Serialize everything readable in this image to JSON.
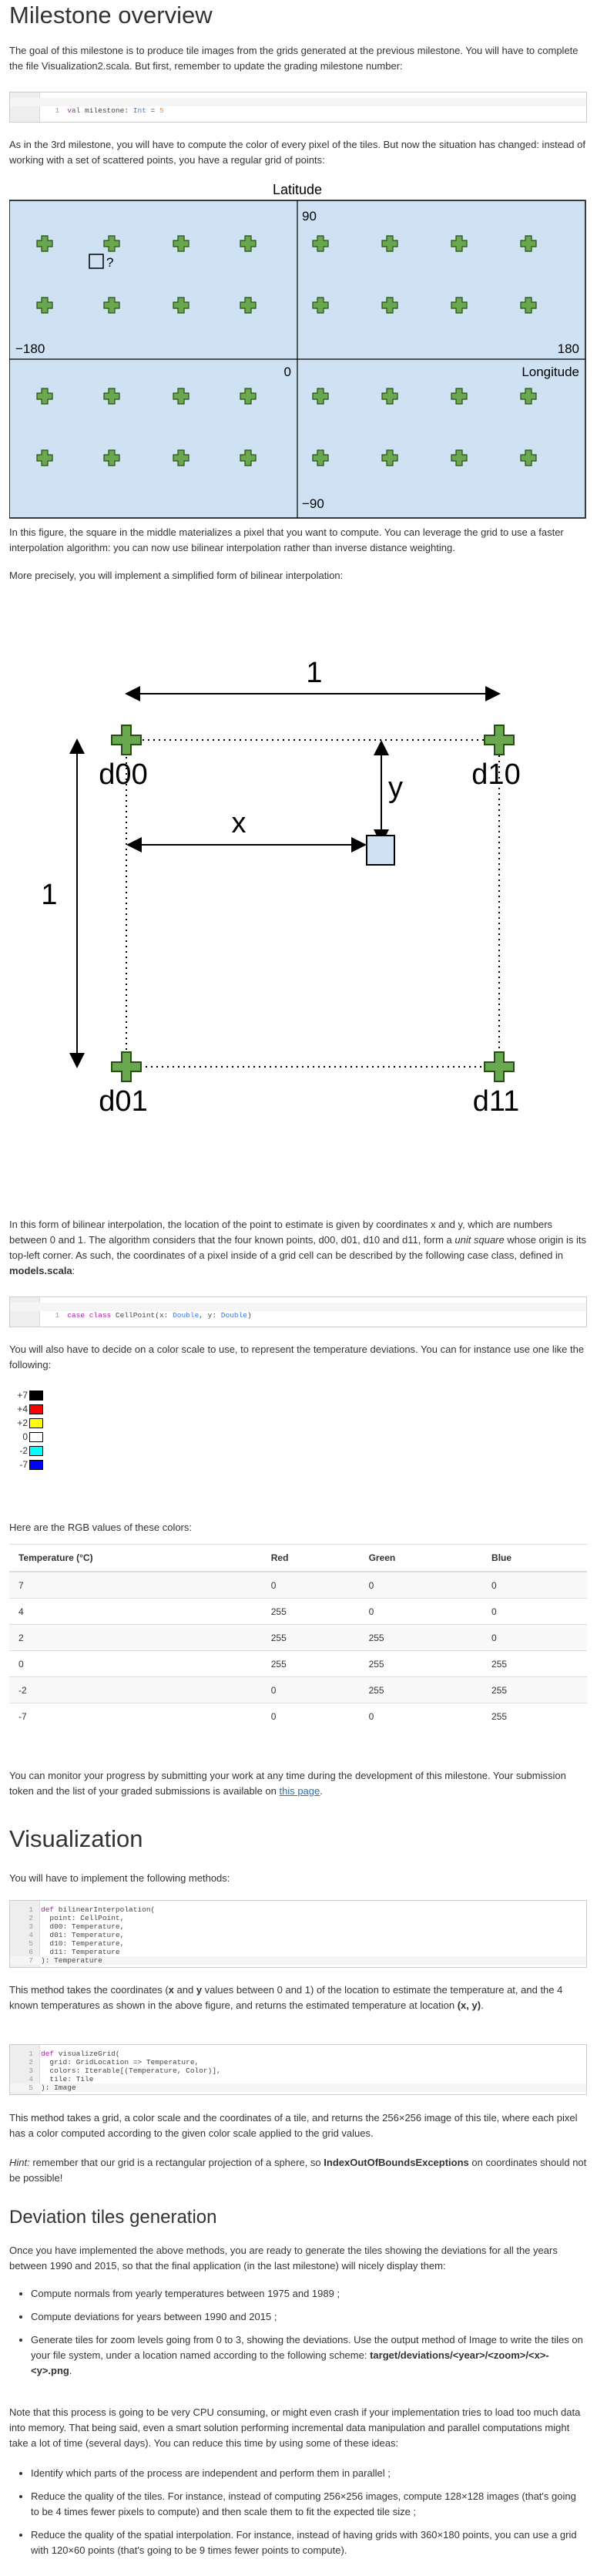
{
  "title": "Milestone overview",
  "intro": "The goal of this milestone is to produce tile images from the grids generated at the previous milestone. You will have to complete the file Visualization2.scala. But first, remember to update the grading milestone number:",
  "code_milestone": {
    "ln": "1",
    "kw": "val",
    "name": " milestone",
    "colon": ": ",
    "type": "Int",
    "eq": " = ",
    "value": "5"
  },
  "para_grid": "As in the 3rd milestone, you will have to compute the color of every pixel of the tiles. But now the situation has changed: instead of working with a set of scattered points, you have a regular grid of points:",
  "grid_figure": {
    "top_label": "Latitude",
    "lat_90": "90",
    "lon_180_neg": "−180",
    "lon_180": "180",
    "zero": "0",
    "longitude": "Longitude",
    "lat_90_neg": "−90",
    "question": "?",
    "bg_color": "#cfe2f3",
    "cross_color": "#6aa84f"
  },
  "para_square": "In this figure, the square in the middle materializes a pixel that you want to compute. You can leverage the grid to use a faster interpolation algorithm: you can now use bilinear interpolation rather than inverse distance weighting.",
  "para_precisely": "More precisely, you will implement a simplified form of bilinear interpolation:",
  "bilinear_figure": {
    "one_top": "1",
    "one_left": "1",
    "x": "x",
    "y": "y",
    "d00": "d00",
    "d10": "d10",
    "d01": "d01",
    "d11": "d11"
  },
  "para_bilinear_1": "In this form of bilinear interpolation, the location of the point to estimate is given by coordinates x and y, which are numbers between 0 and 1. The algorithm considers that the four known points, d00, d01, d10 and d11, form a ",
  "para_bilinear_unit": "unit square",
  "para_bilinear_2": " whose origin is its top-left corner. As such, the coordinates of a pixel inside of a grid cell can be described by the following case class, defined in ",
  "para_bilinear_file": "models.scala",
  "para_bilinear_3": ":",
  "code_cellpoint": {
    "ln": "1",
    "kw": "case class",
    "name": " CellPoint(x",
    "c1": ": ",
    "t1": "Double",
    "mid": ", y",
    "c2": ": ",
    "t2": "Double",
    "end": ")"
  },
  "para_scale": "You will also have to decide on a color scale to use, to represent the temperature deviations. You can for instance use one like the following:",
  "legend": [
    {
      "label": "+7",
      "color": "#000000"
    },
    {
      "label": "+4",
      "color": "#ff0000"
    },
    {
      "label": "+2",
      "color": "#ffff00"
    },
    {
      "label": "0",
      "color": "#ffffff"
    },
    {
      "label": "-2",
      "color": "#00ffff"
    },
    {
      "label": "-7",
      "color": "#0000ff"
    }
  ],
  "para_rgb": "Here are the RGB values of these colors:",
  "rgb_table": {
    "headers": [
      "Temperature (°C)",
      "Red",
      "Green",
      "Blue"
    ],
    "rows": [
      [
        "7",
        "0",
        "0",
        "0"
      ],
      [
        "4",
        "255",
        "0",
        "0"
      ],
      [
        "2",
        "255",
        "255",
        "0"
      ],
      [
        "0",
        "255",
        "255",
        "255"
      ],
      [
        "-2",
        "0",
        "255",
        "255"
      ],
      [
        "-7",
        "0",
        "0",
        "255"
      ]
    ]
  },
  "para_progress_1": "You can monitor your progress by submitting your work at any time during the development of this milestone. Your submission token and the list of your graded submissions is available on ",
  "para_progress_link": "this page",
  "para_progress_2": ".",
  "visualization_title": "Visualization",
  "para_implement": "You will have to implement the following methods:",
  "code_bilinear": [
    {
      "ln": "1",
      "parts": [
        [
          "kw",
          "def"
        ],
        [
          "txt",
          " bilinearInterpolation("
        ]
      ]
    },
    {
      "ln": "2",
      "parts": [
        [
          "txt",
          "  point: CellPoint,"
        ]
      ]
    },
    {
      "ln": "3",
      "parts": [
        [
          "txt",
          "  d00: Temperature,"
        ]
      ]
    },
    {
      "ln": "4",
      "parts": [
        [
          "txt",
          "  d01: Temperature,"
        ]
      ]
    },
    {
      "ln": "5",
      "parts": [
        [
          "txt",
          "  d10: Temperature,"
        ]
      ]
    },
    {
      "ln": "6",
      "parts": [
        [
          "txt",
          "  d11: Temperature"
        ]
      ]
    },
    {
      "ln": "7",
      "parts": [
        [
          "txt",
          "): Temperature"
        ]
      ]
    }
  ],
  "para_method_1": "This method takes the coordinates (",
  "para_method_x": "x",
  "para_method_and": " and ",
  "para_method_y": "y",
  "para_method_2": " values between 0 and 1) of the location to estimate the temperature at, and the 4 known temperatures as shown in the above figure, and returns the estimated temperature at location ",
  "para_method_xy": "(x, y)",
  "para_method_3": ".",
  "code_visualize": [
    {
      "ln": "1",
      "parts": [
        [
          "kw",
          "def"
        ],
        [
          "txt",
          " visualizeGrid("
        ]
      ]
    },
    {
      "ln": "2",
      "parts": [
        [
          "txt",
          "  grid: GridLocation => Temperature,"
        ]
      ]
    },
    {
      "ln": "3",
      "parts": [
        [
          "txt",
          "  colors: Iterable[(Temperature, Color)],"
        ]
      ]
    },
    {
      "ln": "4",
      "parts": [
        [
          "txt",
          "  tile: Tile"
        ]
      ]
    },
    {
      "ln": "5",
      "parts": [
        [
          "txt",
          "): Image"
        ]
      ]
    }
  ],
  "para_grid_method": "This method takes a grid, a color scale and the coordinates of a tile, and returns the 256×256 image of this tile, where each pixel has a color computed according to the given color scale applied to the grid values.",
  "hint_label": "Hint:",
  "hint_1": " remember that our grid is a rectangular projection of a sphere, so ",
  "hint_exc": "IndexOutOfBoundsExceptions",
  "hint_2": " on coordinates should not be possible!",
  "deviation_title": "Deviation tiles generation",
  "para_deviation": "Once you have implemented the above methods, you are ready to generate the tiles showing the deviations for all the years between 1990 and 2015, so that the final application (in the last milestone) will nicely display them:",
  "deviation_list": [
    {
      "text": "Compute normals from yearly temperatures between 1975 and 1989 ;"
    },
    {
      "text": "Compute deviations for years between 1990 and 2015 ;"
    },
    {
      "text": "Generate tiles for zoom levels going from 0 to 3, showing the deviations. Use the output method of Image to write the tiles on your file system, under a location named according to the following scheme: ",
      "bold": "target/deviations/<year>/<zoom>/<x>-<y>.png",
      "tail": "."
    }
  ],
  "para_cpu": "Note that this process is going to be very CPU consuming, or might even crash if your implementation tries to load too much data into memory. That being said, even a smart solution performing incremental data manipulation and parallel computations might take a lot of time (several days). You can reduce this time by using some of these ideas:",
  "ideas_list": [
    "Identify which parts of the process are independent and perform them in parallel ;",
    "Reduce the quality of the tiles. For instance, instead of computing 256×256 images, compute 128×128 images (that's going to be 4 times fewer pixels to compute) and then scale them to fit the expected tile size ;",
    "Reduce the quality of the spatial interpolation. For instance, instead of having grids with 360×180 points, you can use a grid with 120×60 points (that's going to be 9 times fewer points to compute)."
  ]
}
